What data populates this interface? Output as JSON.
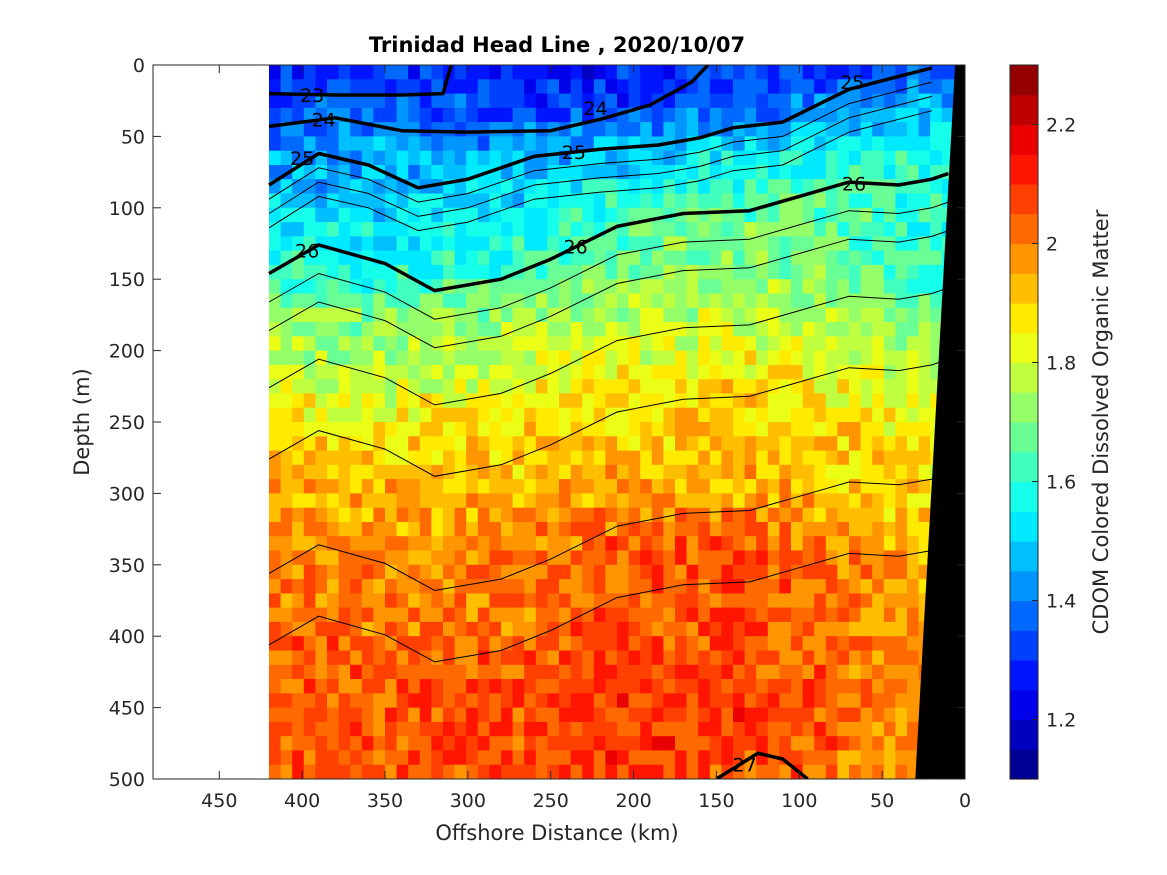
{
  "chart_data": {
    "type": "heatmap",
    "title": "Trinidad Head Line , 2020/10/07",
    "xlabel": "Offshore Distance (km)",
    "ylabel": "Depth (m)",
    "colorbar_label": "CDOM Colored Dissolved Organic Matter",
    "xlim": [
      490,
      0
    ],
    "ylim": [
      0,
      500
    ],
    "x_reversed": true,
    "y_reversed": true,
    "x_ticks": [
      450,
      400,
      350,
      300,
      250,
      200,
      150,
      100,
      50,
      0
    ],
    "x_tick_labels": [
      "450",
      "400",
      "350",
      "300",
      "250",
      "200",
      "150",
      "100",
      "50",
      "0"
    ],
    "y_ticks": [
      0,
      50,
      100,
      150,
      200,
      250,
      300,
      350,
      400,
      450,
      500
    ],
    "y_tick_labels": [
      "0",
      "50",
      "100",
      "150",
      "200",
      "250",
      "300",
      "350",
      "400",
      "450",
      "500"
    ],
    "colorbar": {
      "range": [
        1.1,
        2.3
      ],
      "ticks": [
        1.2,
        1.4,
        1.6,
        1.8,
        2,
        2.2
      ],
      "tick_labels": [
        "1.2",
        "1.4",
        "1.6",
        "1.8",
        "2",
        "2.2"
      ],
      "colormap": "jet",
      "levels": 24
    },
    "data_extent_x": [
      420,
      0
    ],
    "field_profile": {
      "description_depths_m": [
        0,
        20,
        40,
        60,
        80,
        100,
        125,
        150,
        175,
        200,
        225,
        250,
        275,
        300,
        325,
        350,
        375,
        400,
        425,
        450,
        475,
        500
      ],
      "offshore_km": [
        420,
        350,
        280,
        210,
        140,
        70,
        10
      ],
      "cdom": [
        [
          1.28,
          1.3,
          1.25,
          1.27,
          1.3,
          1.32,
          1.35
        ],
        [
          1.32,
          1.34,
          1.3,
          1.3,
          1.34,
          1.38,
          1.42
        ],
        [
          1.38,
          1.4,
          1.36,
          1.37,
          1.42,
          1.48,
          1.52
        ],
        [
          1.42,
          1.44,
          1.43,
          1.46,
          1.52,
          1.56,
          1.58
        ],
        [
          1.46,
          1.47,
          1.48,
          1.54,
          1.6,
          1.62,
          1.6
        ],
        [
          1.5,
          1.5,
          1.53,
          1.6,
          1.66,
          1.64,
          1.58
        ],
        [
          1.56,
          1.55,
          1.58,
          1.66,
          1.7,
          1.66,
          1.6
        ],
        [
          1.62,
          1.6,
          1.64,
          1.72,
          1.74,
          1.7,
          1.62
        ],
        [
          1.7,
          1.7,
          1.72,
          1.76,
          1.78,
          1.74,
          1.66
        ],
        [
          1.76,
          1.74,
          1.76,
          1.8,
          1.84,
          1.8,
          1.72
        ],
        [
          1.82,
          1.8,
          1.82,
          1.86,
          1.88,
          1.84,
          1.78
        ],
        [
          1.88,
          1.86,
          1.86,
          1.9,
          1.9,
          1.88,
          1.84
        ],
        [
          1.92,
          1.9,
          1.9,
          1.92,
          1.92,
          1.9,
          1.86
        ],
        [
          1.94,
          1.93,
          1.94,
          1.96,
          1.96,
          1.92,
          1.88
        ],
        [
          1.98,
          1.96,
          1.98,
          2.02,
          2.04,
          1.96,
          1.9
        ],
        [
          2.0,
          1.98,
          2.0,
          2.04,
          2.06,
          2.0,
          1.9
        ],
        [
          2.02,
          2.0,
          2.0,
          2.04,
          2.06,
          2.0,
          1.92
        ],
        [
          2.04,
          2.02,
          2.02,
          2.06,
          2.06,
          2.02,
          1.92
        ],
        [
          2.04,
          2.02,
          2.04,
          2.08,
          2.06,
          2.02,
          1.94
        ],
        [
          2.05,
          2.04,
          2.06,
          2.08,
          2.08,
          2.02,
          1.94
        ],
        [
          2.06,
          2.04,
          2.06,
          2.08,
          2.08,
          2.02,
          1.94
        ],
        [
          2.06,
          2.04,
          2.06,
          2.08,
          2.06,
          2.0,
          1.94
        ]
      ]
    },
    "isopycnals": [
      {
        "level": "23",
        "points": [
          [
            420,
            20
          ],
          [
            380,
            21
          ],
          [
            340,
            21
          ],
          [
            315,
            20
          ],
          [
            310,
            0
          ]
        ],
        "bold": true
      },
      {
        "level": "24",
        "points": [
          [
            420,
            43
          ],
          [
            380,
            37
          ],
          [
            340,
            46
          ],
          [
            300,
            47
          ],
          [
            250,
            46
          ],
          [
            220,
            38
          ],
          [
            190,
            28
          ],
          [
            165,
            12
          ],
          [
            155,
            0
          ]
        ],
        "bold": true
      },
      {
        "level": "25",
        "points": [
          [
            420,
            84
          ],
          [
            390,
            62
          ],
          [
            360,
            70
          ],
          [
            330,
            86
          ],
          [
            300,
            80
          ],
          [
            260,
            64
          ],
          [
            220,
            59
          ],
          [
            185,
            56
          ],
          [
            160,
            51
          ],
          [
            140,
            44
          ],
          [
            110,
            40
          ],
          [
            70,
            17
          ],
          [
            40,
            8
          ],
          [
            20,
            2
          ]
        ],
        "bold": true
      },
      {
        "level": "26",
        "points": [
          [
            420,
            146
          ],
          [
            390,
            126
          ],
          [
            350,
            139
          ],
          [
            320,
            158
          ],
          [
            280,
            150
          ],
          [
            250,
            136
          ],
          [
            210,
            113
          ],
          [
            170,
            104
          ],
          [
            130,
            102
          ],
          [
            100,
            92
          ],
          [
            70,
            82
          ],
          [
            40,
            84
          ],
          [
            20,
            80
          ],
          [
            10,
            76
          ]
        ],
        "bold": true
      },
      {
        "level": "27",
        "points": [
          [
            150,
            500
          ],
          [
            125,
            482
          ],
          [
            110,
            486
          ],
          [
            95,
            500
          ]
        ],
        "bold": true
      }
    ],
    "contour_labels": [
      {
        "text": "23",
        "x": 394,
        "y": 21
      },
      {
        "text": "24",
        "x": 387,
        "y": 38
      },
      {
        "text": "25",
        "x": 400,
        "y": 65
      },
      {
        "text": "24",
        "x": 223,
        "y": 30
      },
      {
        "text": "25",
        "x": 236,
        "y": 61
      },
      {
        "text": "26",
        "x": 397,
        "y": 130
      },
      {
        "text": "26",
        "x": 235,
        "y": 127
      },
      {
        "text": "26",
        "x": 67,
        "y": 83
      },
      {
        "text": "25",
        "x": 68,
        "y": 12
      },
      {
        "text": "27",
        "x": 133,
        "y": 490
      }
    ]
  }
}
